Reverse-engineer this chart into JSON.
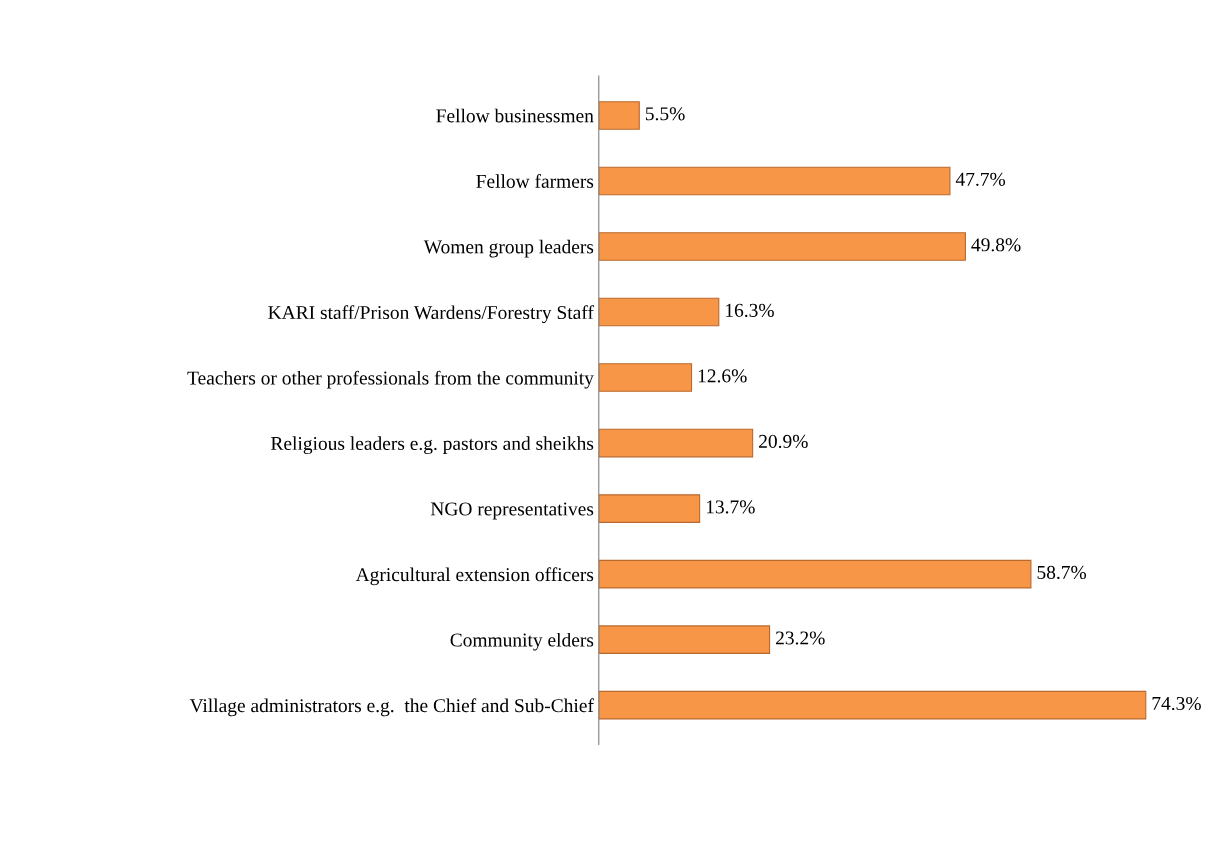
{
  "chart_data": {
    "type": "bar",
    "orientation": "horizontal",
    "categories": [
      "Fellow businessmen",
      "Fellow farmers",
      "Women group leaders",
      "KARI staff/Prison Wardens/Forestry Staff",
      "Teachers or other professionals from the community",
      "Religious leaders e.g. pastors and sheikhs",
      "NGO representatives",
      "Agricultural extension officers",
      "Community elders",
      "Village administrators e.g.  the Chief and Sub-Chief"
    ],
    "values": [
      5.5,
      47.7,
      49.8,
      16.3,
      12.6,
      20.9,
      13.7,
      58.7,
      23.2,
      74.3
    ],
    "value_labels": [
      "5.5%",
      "47.7%",
      "49.8%",
      "16.3%",
      "12.6%",
      "20.9%",
      "13.7%",
      "58.7%",
      "23.2%",
      "74.3%"
    ],
    "color": "#f79646",
    "grid": false,
    "legend": false,
    "tick_labels": "y"
  }
}
